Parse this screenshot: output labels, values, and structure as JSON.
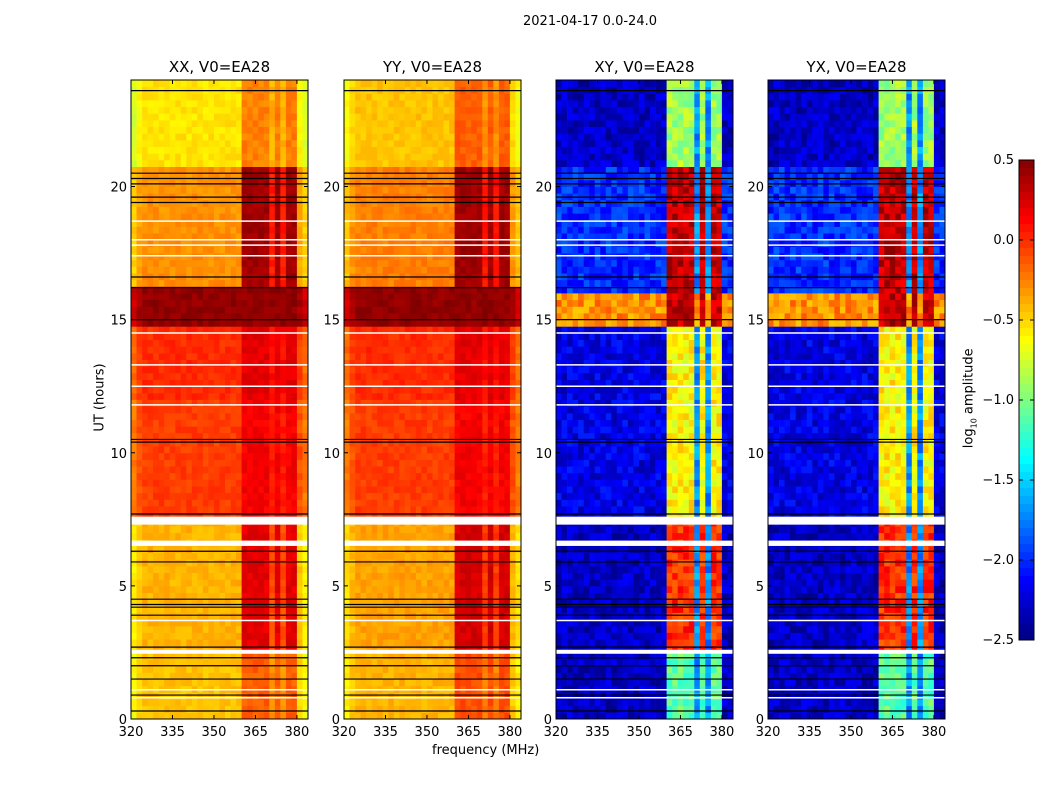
{
  "chart_data": {
    "type": "heatmap",
    "title": "2021-04-17 0.0-24.0",
    "xlabel": "frequency (MHz)",
    "ylabel": "UT (hours)",
    "xlim": [
      320,
      384
    ],
    "ylim": [
      0,
      24
    ],
    "xticks": [
      "320",
      "335",
      "350",
      "365",
      "380"
    ],
    "yticks": [
      "0",
      "5",
      "10",
      "15",
      "20"
    ],
    "colorbar": {
      "label_main": "log",
      "label_sub": "10",
      "label_rest": " amplitude",
      "clim": [
        -2.5,
        0.5
      ],
      "colormap": "jet",
      "ticks": [
        "0.5",
        "0.0",
        "−0.5",
        "−1.0",
        "−1.5",
        "−2.0",
        "−2.5"
      ]
    },
    "band_channels_mhz": [
      [
        361,
        365.5
      ],
      [
        366.5,
        370
      ],
      [
        371.5,
        375
      ],
      [
        376,
        379.5
      ]
    ],
    "flagged_blank_hours": [
      [
        2.45,
        2.6
      ],
      [
        6.5,
        6.7
      ],
      [
        7.3,
        7.6
      ]
    ],
    "thin_white_hours": [
      18.7,
      18.0,
      17.8,
      17.4,
      14.5,
      13.3,
      12.5,
      11.8,
      3.7,
      1.1,
      0.8
    ],
    "black_line_hours": [
      23.6,
      20.5,
      20.3,
      20.1,
      19.6,
      19.4,
      16.6,
      16.2,
      15.0,
      10.5,
      10.4,
      7.7,
      6.3,
      5.9,
      4.5,
      4.3,
      4.2,
      3.9,
      2.7,
      2.3,
      2.0,
      1.5,
      0.9,
      0.3
    ],
    "panels": [
      {
        "title": "XX, V0=EA28",
        "segments": [
          [
            0,
            2.5,
            -0.45,
            -0.15
          ],
          [
            2.5,
            7.5,
            -0.4,
            0.2
          ],
          [
            7.5,
            12,
            -0.05,
            0.15
          ],
          [
            12,
            14.6,
            0.0,
            0.2
          ],
          [
            14.6,
            16.1,
            0.45,
            0.45
          ],
          [
            16.1,
            20.6,
            -0.3,
            0.4
          ],
          [
            20.6,
            24,
            -0.55,
            -0.25
          ]
        ],
        "gap_level": null
      },
      {
        "title": "YY, V0=EA28",
        "segments": [
          [
            0,
            2.5,
            -0.4,
            -0.1
          ],
          [
            2.5,
            7.5,
            -0.35,
            0.25
          ],
          [
            7.5,
            12,
            -0.05,
            0.15
          ],
          [
            12,
            14.6,
            0.0,
            0.2
          ],
          [
            14.6,
            16.1,
            0.45,
            0.45
          ],
          [
            16.1,
            20.6,
            -0.25,
            0.4
          ],
          [
            20.6,
            24,
            -0.45,
            -0.15
          ]
        ],
        "gap_level": null
      },
      {
        "title": "XY, V0=EA28",
        "segments": [
          [
            0,
            2.5,
            -2.3,
            -1.1
          ],
          [
            2.5,
            7.5,
            -2.3,
            0.0
          ],
          [
            7.5,
            14.7,
            -2.2,
            -0.6
          ],
          [
            14.7,
            16.0,
            -0.3,
            0.3
          ],
          [
            16.0,
            20.6,
            -2.0,
            0.3
          ],
          [
            20.6,
            24,
            -2.3,
            -0.9
          ]
        ],
        "gap_level": -1.7
      },
      {
        "title": "YX, V0=EA28",
        "segments": [
          [
            0,
            2.5,
            -2.3,
            -1.1
          ],
          [
            2.5,
            7.5,
            -2.3,
            0.0
          ],
          [
            7.5,
            14.7,
            -2.2,
            -0.6
          ],
          [
            14.7,
            16.0,
            -0.3,
            0.3
          ],
          [
            16.0,
            20.6,
            -2.0,
            0.3
          ],
          [
            20.6,
            24,
            -2.3,
            -0.9
          ]
        ],
        "gap_level": -1.7
      }
    ]
  }
}
